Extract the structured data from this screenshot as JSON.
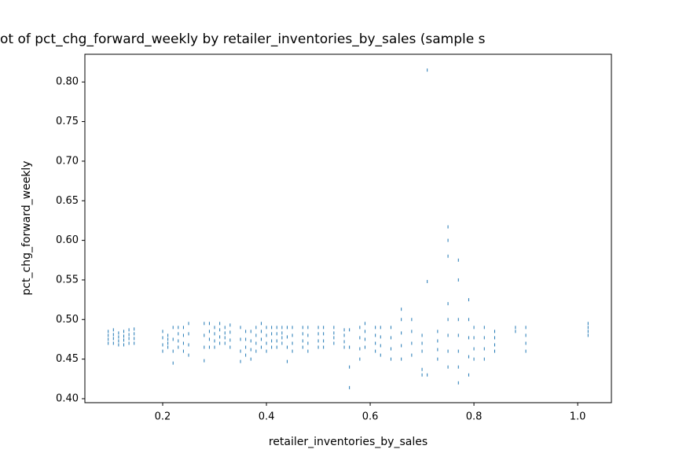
{
  "chart_data": {
    "type": "scatter",
    "title": "ot of pct_chg_forward_weekly by retailer_inventories_by_sales (sample s",
    "x_label": "retailer_inventories_by_sales",
    "y_label": "pct_chg_forward_weekly",
    "color": "#1f77b4",
    "xlim": [
      0.05,
      1.065
    ],
    "ylim": [
      0.395,
      0.835
    ],
    "xticks": [
      0.2,
      0.4,
      0.6,
      0.8,
      {
        "value": 1.0,
        "label": "1.0"
      }
    ],
    "yticks": [
      {
        "value": 0.4,
        "label": "0.40"
      },
      0.45,
      {
        "value": 0.5,
        "label": "0.50"
      },
      0.55,
      {
        "value": 0.6,
        "label": "0.60"
      },
      0.65,
      {
        "value": 0.7,
        "label": "0.70"
      },
      0.75,
      {
        "value": 0.8,
        "label": "0.80"
      }
    ],
    "x": [
      0.095,
      0.095,
      0.095,
      0.095,
      0.105,
      0.105,
      0.105,
      0.105,
      0.115,
      0.115,
      0.115,
      0.115,
      0.125,
      0.125,
      0.125,
      0.125,
      0.135,
      0.135,
      0.135,
      0.135,
      0.145,
      0.145,
      0.145,
      0.145,
      0.2,
      0.2,
      0.2,
      0.2,
      0.21,
      0.21,
      0.21,
      0.21,
      0.22,
      0.22,
      0.22,
      0.22,
      0.23,
      0.23,
      0.23,
      0.23,
      0.24,
      0.24,
      0.24,
      0.24,
      0.25,
      0.25,
      0.25,
      0.25,
      0.28,
      0.28,
      0.28,
      0.28,
      0.29,
      0.29,
      0.29,
      0.29,
      0.3,
      0.3,
      0.3,
      0.3,
      0.31,
      0.31,
      0.31,
      0.31,
      0.32,
      0.32,
      0.32,
      0.32,
      0.33,
      0.33,
      0.33,
      0.33,
      0.35,
      0.35,
      0.35,
      0.35,
      0.36,
      0.36,
      0.36,
      0.36,
      0.37,
      0.37,
      0.37,
      0.37,
      0.38,
      0.38,
      0.38,
      0.38,
      0.39,
      0.39,
      0.39,
      0.39,
      0.4,
      0.4,
      0.4,
      0.4,
      0.41,
      0.41,
      0.41,
      0.41,
      0.42,
      0.42,
      0.42,
      0.42,
      0.43,
      0.43,
      0.43,
      0.43,
      0.44,
      0.44,
      0.44,
      0.44,
      0.45,
      0.45,
      0.45,
      0.45,
      0.47,
      0.47,
      0.47,
      0.47,
      0.48,
      0.48,
      0.48,
      0.48,
      0.5,
      0.5,
      0.5,
      0.5,
      0.51,
      0.51,
      0.51,
      0.51,
      0.53,
      0.53,
      0.53,
      0.53,
      0.55,
      0.55,
      0.55,
      0.55,
      0.56,
      0.56,
      0.56,
      0.56,
      0.58,
      0.58,
      0.58,
      0.58,
      0.59,
      0.59,
      0.59,
      0.59,
      0.61,
      0.61,
      0.61,
      0.61,
      0.62,
      0.62,
      0.62,
      0.62,
      0.64,
      0.64,
      0.64,
      0.64,
      0.66,
      0.66,
      0.66,
      0.66,
      0.66,
      0.68,
      0.68,
      0.68,
      0.68,
      0.7,
      0.7,
      0.7,
      0.7,
      0.7,
      0.71,
      0.71,
      0.71,
      0.73,
      0.73,
      0.73,
      0.73,
      0.75,
      0.75,
      0.75,
      0.75,
      0.75,
      0.75,
      0.75,
      0.75,
      0.77,
      0.77,
      0.77,
      0.77,
      0.77,
      0.77,
      0.77,
      0.79,
      0.79,
      0.79,
      0.79,
      0.79,
      0.8,
      0.8,
      0.8,
      0.8,
      0.82,
      0.82,
      0.82,
      0.82,
      0.84,
      0.84,
      0.84,
      0.84,
      0.88,
      0.88,
      0.9,
      0.9,
      0.9,
      0.9,
      1.02,
      1.02,
      1.02,
      1.02
    ],
    "y": [
      0.47,
      0.475,
      0.48,
      0.485,
      0.47,
      0.476,
      0.481,
      0.487,
      0.468,
      0.473,
      0.478,
      0.483,
      0.468,
      0.474,
      0.479,
      0.485,
      0.47,
      0.476,
      0.481,
      0.487,
      0.47,
      0.476,
      0.482,
      0.488,
      0.46,
      0.468,
      0.477,
      0.485,
      0.465,
      0.47,
      0.475,
      0.48,
      0.445,
      0.46,
      0.475,
      0.49,
      0.465,
      0.473,
      0.482,
      0.49,
      0.46,
      0.47,
      0.48,
      0.49,
      0.455,
      0.468,
      0.482,
      0.495,
      0.448,
      0.465,
      0.48,
      0.495,
      0.465,
      0.475,
      0.485,
      0.495,
      0.465,
      0.473,
      0.482,
      0.49,
      0.47,
      0.478,
      0.487,
      0.495,
      0.47,
      0.477,
      0.483,
      0.49,
      0.465,
      0.474,
      0.484,
      0.493,
      0.447,
      0.46,
      0.475,
      0.49,
      0.455,
      0.465,
      0.475,
      0.485,
      0.45,
      0.462,
      0.473,
      0.485,
      0.46,
      0.47,
      0.48,
      0.49,
      0.465,
      0.475,
      0.485,
      0.495,
      0.46,
      0.47,
      0.48,
      0.49,
      0.465,
      0.473,
      0.482,
      0.49,
      0.465,
      0.473,
      0.482,
      0.49,
      0.47,
      0.477,
      0.483,
      0.49,
      0.447,
      0.465,
      0.478,
      0.49,
      0.46,
      0.47,
      0.48,
      0.49,
      0.465,
      0.473,
      0.482,
      0.49,
      0.46,
      0.47,
      0.48,
      0.49,
      0.465,
      0.473,
      0.482,
      0.49,
      0.465,
      0.473,
      0.482,
      0.49,
      0.47,
      0.477,
      0.483,
      0.49,
      0.465,
      0.472,
      0.48,
      0.487,
      0.414,
      0.44,
      0.465,
      0.487,
      0.45,
      0.463,
      0.477,
      0.49,
      0.465,
      0.475,
      0.485,
      0.495,
      0.46,
      0.47,
      0.48,
      0.49,
      0.455,
      0.467,
      0.478,
      0.49,
      0.45,
      0.463,
      0.477,
      0.49,
      0.45,
      0.467,
      0.483,
      0.5,
      0.513,
      0.455,
      0.47,
      0.485,
      0.5,
      0.43,
      0.437,
      0.46,
      0.47,
      0.48,
      0.43,
      0.548,
      0.815,
      0.45,
      0.462,
      0.473,
      0.485,
      0.44,
      0.46,
      0.48,
      0.5,
      0.52,
      0.58,
      0.6,
      0.617,
      0.42,
      0.44,
      0.46,
      0.48,
      0.5,
      0.55,
      0.575,
      0.43,
      0.453,
      0.477,
      0.5,
      0.525,
      0.45,
      0.463,
      0.477,
      0.49,
      0.45,
      0.463,
      0.477,
      0.49,
      0.46,
      0.468,
      0.477,
      0.485,
      0.485,
      0.49,
      0.46,
      0.47,
      0.48,
      0.49,
      0.48,
      0.485,
      0.49,
      0.495
    ]
  }
}
